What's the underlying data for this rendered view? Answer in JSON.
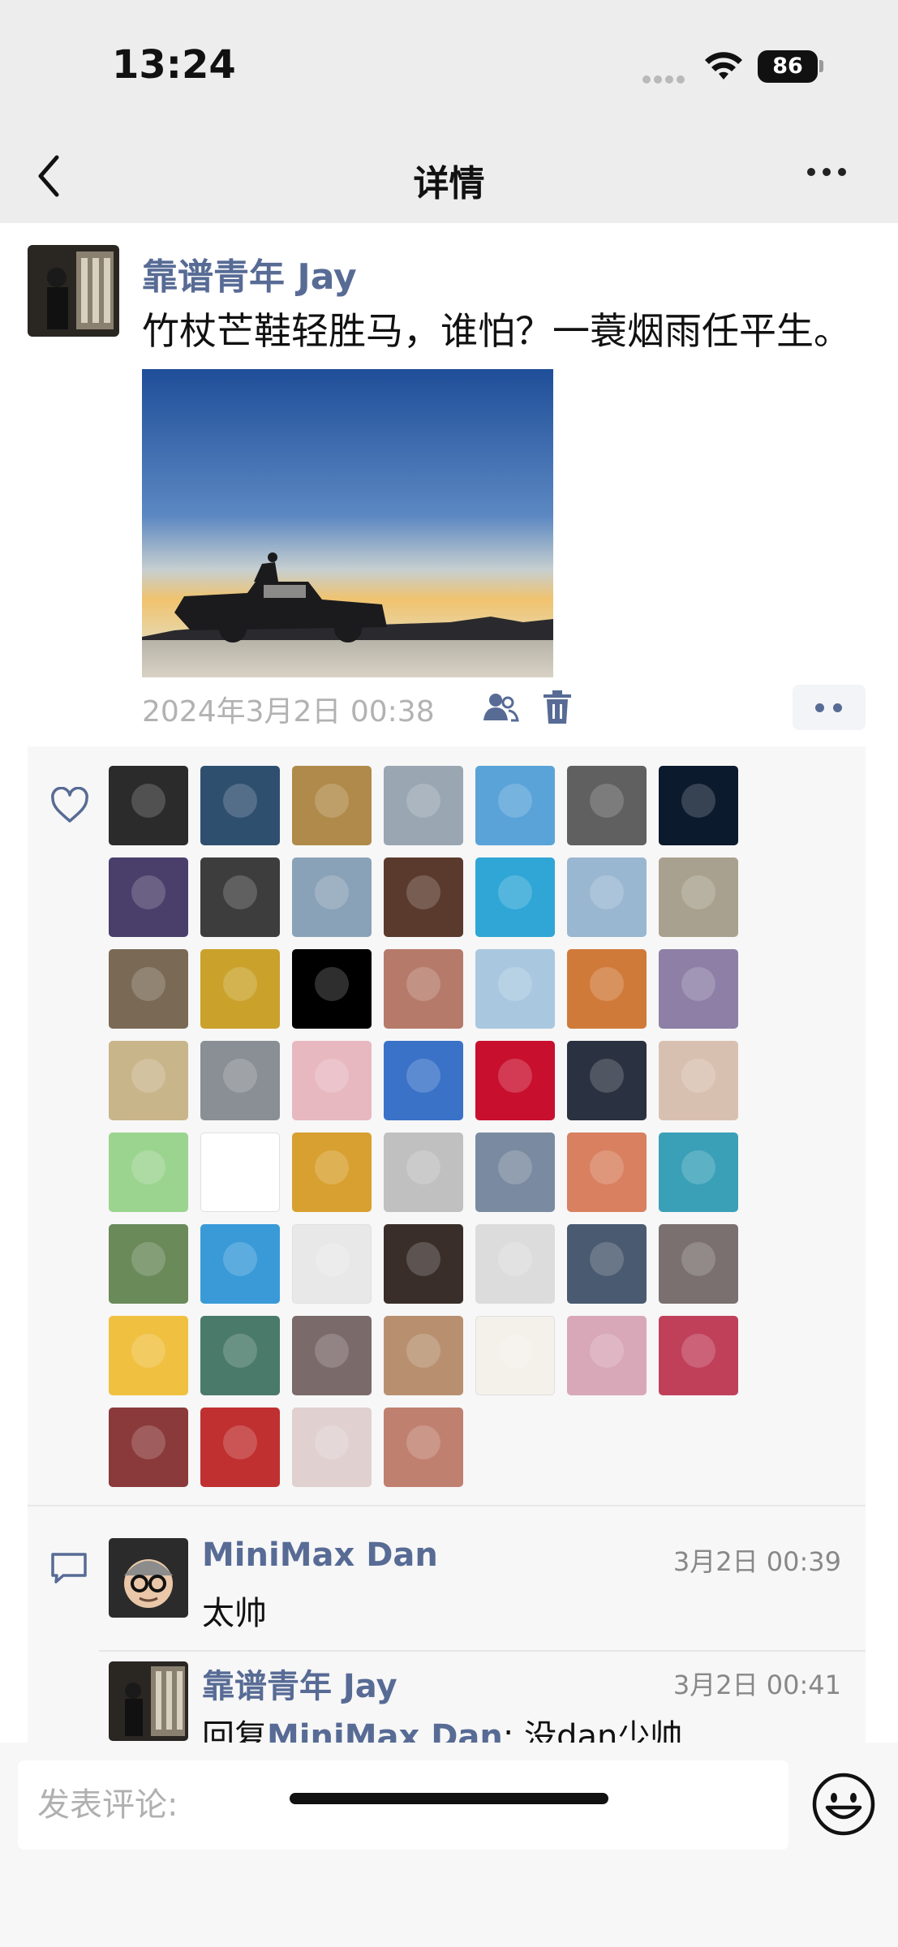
{
  "status_bar": {
    "time": "13:24",
    "battery": "86"
  },
  "nav": {
    "title": "详情"
  },
  "post": {
    "author": "靠谱青年 Jay",
    "text": "竹杖芒鞋轻胜马，谁怕？一蓑烟雨任平生。",
    "timestamp": "2024年3月2日 00:38"
  },
  "likes": {
    "count_visible": 53,
    "palette": [
      "#2b2b2b",
      "#2f4f6f",
      "#b08a4a",
      "#9aa6b2",
      "#5aa3d8",
      "#606060",
      "#0c1a2e",
      "#4a3f6a",
      "#3d3d3d",
      "#8aa2b8",
      "#5b3a2e",
      "#2fa6d6",
      "#9ab7d1",
      "#a9a18f",
      "#7a6a55",
      "#caa12a",
      "#000000",
      "#b57a6a",
      "#a9c8e0",
      "#d07a3a",
      "#8d7fa6",
      "#c9b58a",
      "#8a8f95",
      "#e8b8c0",
      "#3a72c8",
      "#c8102e",
      "#2a3140",
      "#d8c0b0",
      "#9bd48f",
      "#ffffff",
      "#d8a030",
      "#c0c0c0",
      "#7a8aa0",
      "#d88060",
      "#3aa0b8",
      "#6a8a5a",
      "#3a9ad8",
      "#e8e8e8",
      "#3a2e2a",
      "#dcdcdc",
      "#4a5a70",
      "#7a7070",
      "#f0c040",
      "#4a7a6a",
      "#7a6a6a",
      "#b89070",
      "#f4f0ea",
      "#d8a8b8",
      "#c0405a",
      "#8a3a3a",
      "#c03030",
      "#e0d0d0",
      "#c08070"
    ]
  },
  "comments": [
    {
      "name": "MiniMax Dan",
      "time": "3月2日 00:39",
      "text": "太帅"
    },
    {
      "name": "靠谱青年 Jay",
      "time": "3月2日 00:41",
      "reply_prefix": "回复",
      "reply_to": "MiniMax Dan",
      "reply_text": ": 没dan少帅"
    }
  ],
  "input": {
    "placeholder": "发表评论:"
  }
}
